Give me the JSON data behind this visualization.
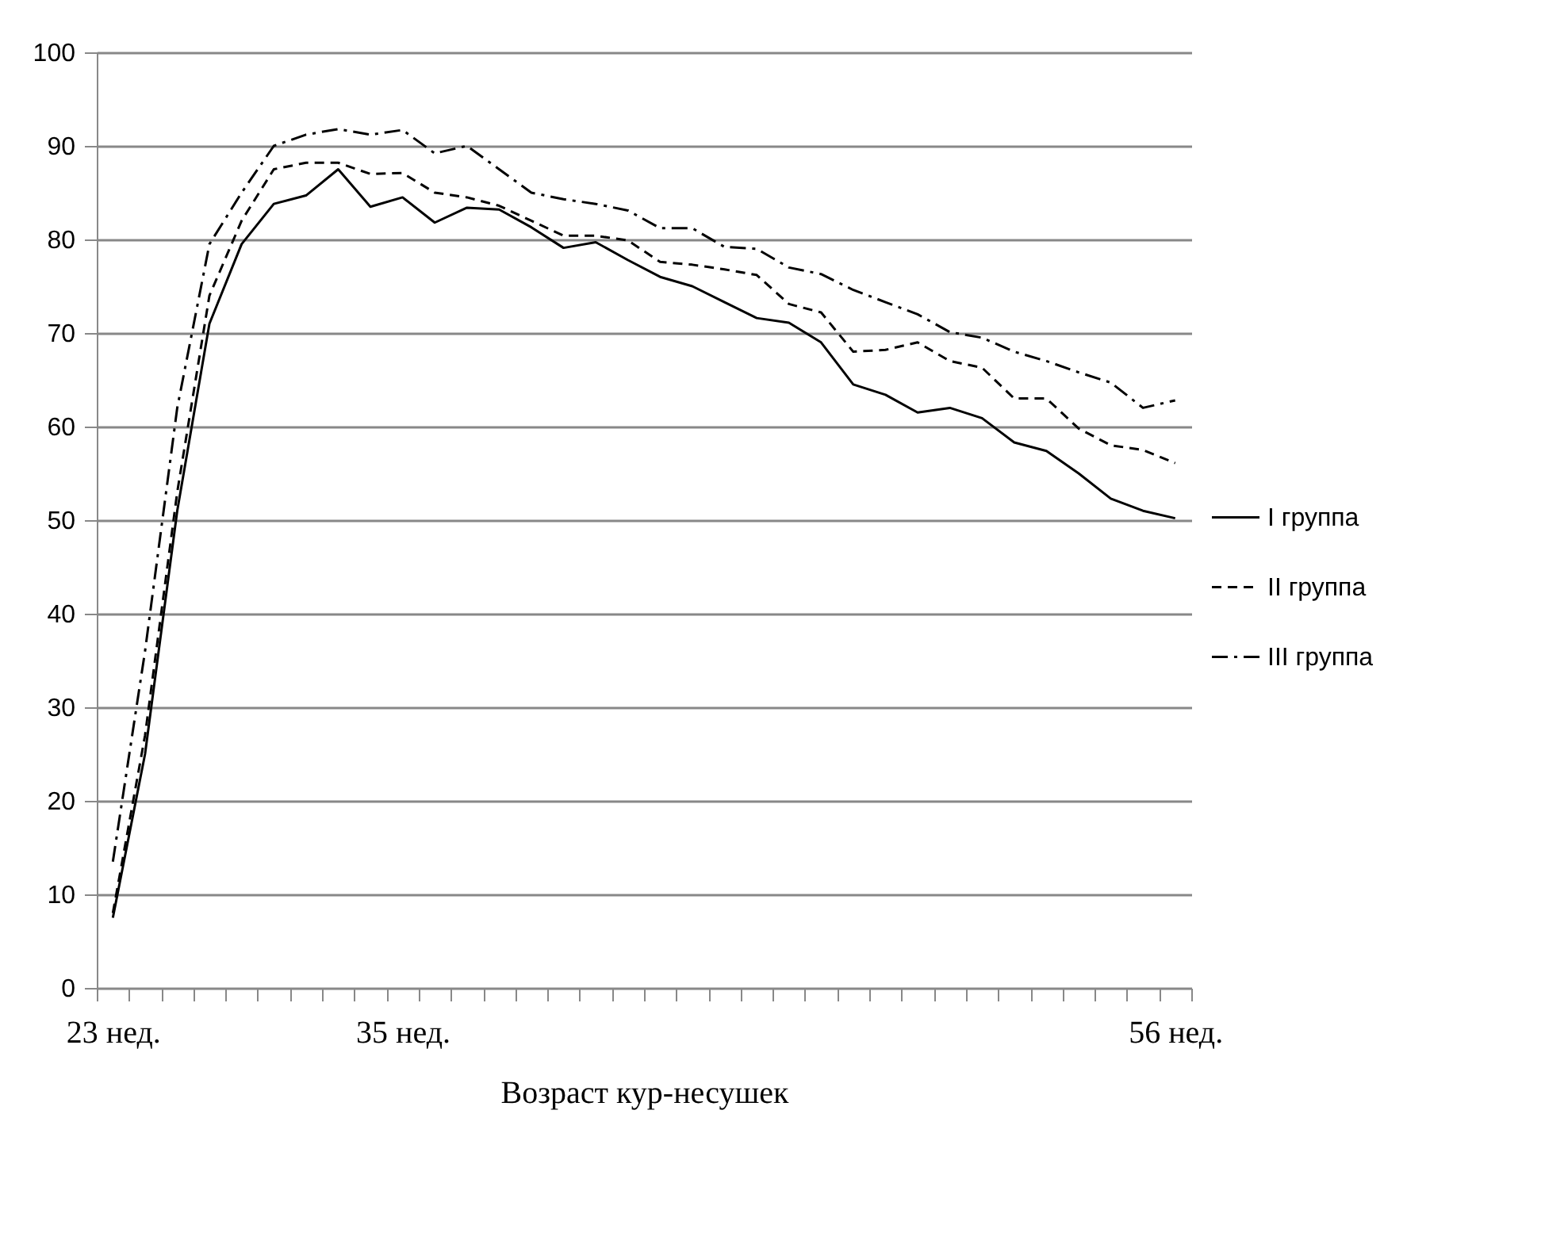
{
  "chart_data": {
    "type": "line",
    "xlabel": "Возраст кур-несушек",
    "categories": [
      "23 нед.",
      null,
      null,
      null,
      null,
      null,
      null,
      null,
      null,
      "35 нед.",
      null,
      null,
      null,
      null,
      null,
      null,
      null,
      null,
      null,
      null,
      null,
      null,
      null,
      null,
      null,
      null,
      null,
      null,
      null,
      null,
      null,
      null,
      null,
      "56 нед."
    ],
    "ylim": [
      0,
      100
    ],
    "yticks": [
      0,
      10,
      20,
      30,
      40,
      50,
      60,
      70,
      80,
      90,
      100
    ],
    "grid": "y",
    "legend": "right",
    "series": [
      {
        "name": "I группа",
        "color": "#000000",
        "line_style": "solid",
        "values": [
          7.5,
          25,
          51,
          71,
          79.5,
          83.8,
          84.7,
          87.5,
          83.5,
          84.5,
          81.8,
          83.4,
          83.2,
          81.3,
          79.1,
          79.7,
          77.8,
          76,
          75,
          73.3,
          71.6,
          71.1,
          69,
          64.5,
          63.4,
          61.5,
          62,
          60.9,
          58.3,
          57.4,
          55,
          52.3,
          51,
          50.2
        ]
      },
      {
        "name": "II группа",
        "color": "#000000",
        "line_style": "dashed",
        "values": [
          8,
          27,
          53,
          74,
          82,
          87.5,
          88.2,
          88.2,
          87,
          87.1,
          85,
          84.5,
          83.6,
          82,
          80.4,
          80.4,
          79.9,
          77.6,
          77.3,
          76.8,
          76.2,
          73.1,
          72.2,
          68,
          68.2,
          69,
          67,
          66.3,
          63,
          63,
          59.8,
          58,
          57.5,
          56.1
        ]
      },
      {
        "name": "III группа",
        "color": "#000000",
        "line_style": "dashdot",
        "values": [
          13.5,
          36,
          62,
          79.5,
          85,
          90,
          91.2,
          91.8,
          91.2,
          91.7,
          89.2,
          90,
          87.5,
          85,
          84.3,
          83.8,
          83.1,
          81.2,
          81.2,
          79.2,
          79,
          77,
          76.3,
          74.6,
          73.3,
          72,
          70.1,
          69.5,
          68,
          67,
          65.8,
          64.7,
          62,
          62.8
        ]
      }
    ]
  }
}
